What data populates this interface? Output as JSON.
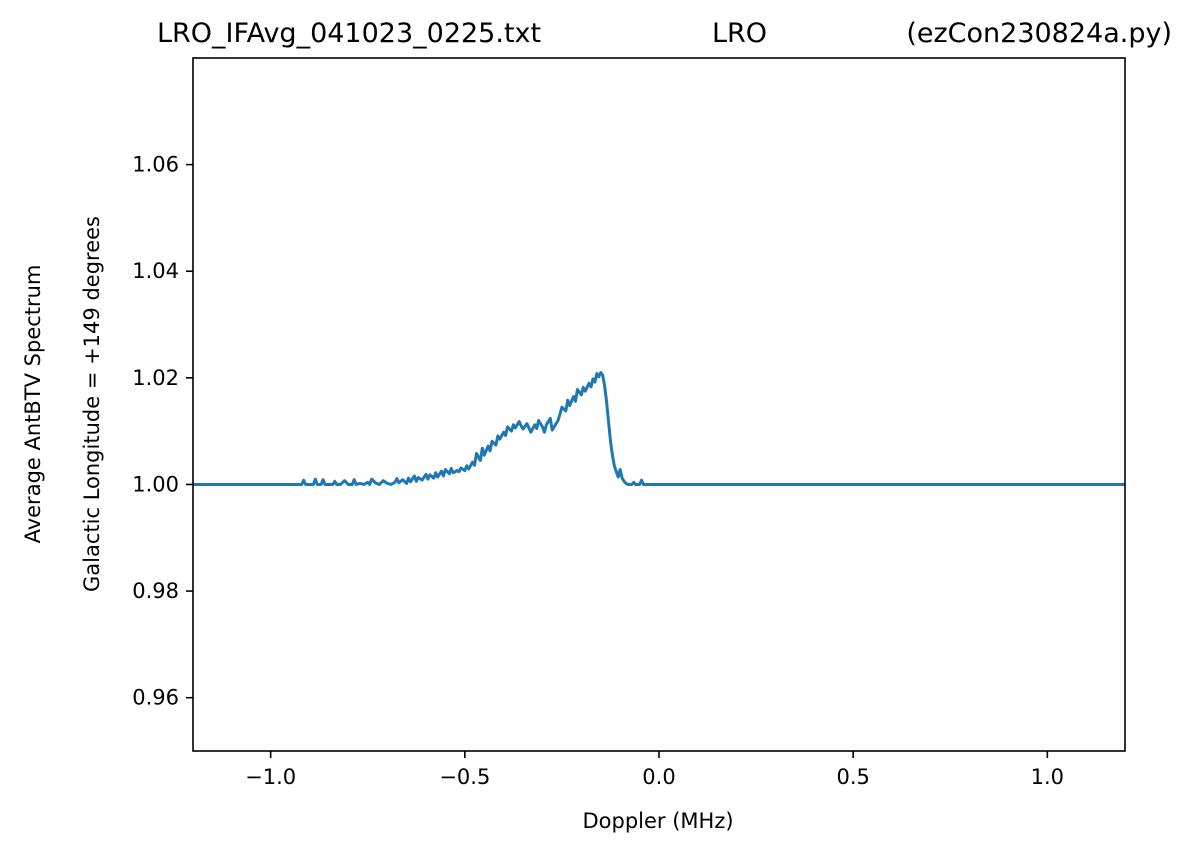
{
  "chart_data": {
    "type": "line",
    "title_left": "LRO_IFAvg_041023_0225.txt",
    "title_center": "LRO",
    "title_right": "(ezCon230824a.py)",
    "xlabel": "Doppler (MHz)",
    "ylabel_line1": "Average AntBTV Spectrum",
    "ylabel_line2": "Galactic Longitude = +149 degrees",
    "xlim": [
      -1.2,
      1.2
    ],
    "ylim": [
      0.95,
      1.08
    ],
    "grid": false,
    "xticks": [
      {
        "value": -1.0,
        "label": "−1.0"
      },
      {
        "value": -0.5,
        "label": "−0.5"
      },
      {
        "value": 0.0,
        "label": "0.0"
      },
      {
        "value": 0.5,
        "label": "0.5"
      },
      {
        "value": 1.0,
        "label": "1.0"
      }
    ],
    "yticks": [
      {
        "value": 0.96,
        "label": "0.96"
      },
      {
        "value": 0.98,
        "label": "0.98"
      },
      {
        "value": 1.0,
        "label": "1.00"
      },
      {
        "value": 1.02,
        "label": "1.02"
      },
      {
        "value": 1.04,
        "label": "1.04"
      },
      {
        "value": 1.06,
        "label": "1.06"
      }
    ],
    "series": [
      {
        "color": "#1f77b4",
        "x": [
          -1.2,
          -0.92,
          -0.915,
          -0.91,
          -0.89,
          -0.885,
          -0.88,
          -0.87,
          -0.865,
          -0.86,
          -0.84,
          -0.835,
          -0.83,
          -0.82,
          -0.81,
          -0.8,
          -0.79,
          -0.785,
          -0.78,
          -0.77,
          -0.76,
          -0.75,
          -0.745,
          -0.74,
          -0.73,
          -0.72,
          -0.71,
          -0.7,
          -0.69,
          -0.68,
          -0.675,
          -0.67,
          -0.66,
          -0.65,
          -0.645,
          -0.64,
          -0.63,
          -0.625,
          -0.62,
          -0.61,
          -0.6,
          -0.595,
          -0.59,
          -0.58,
          -0.575,
          -0.57,
          -0.56,
          -0.555,
          -0.55,
          -0.54,
          -0.535,
          -0.53,
          -0.52,
          -0.515,
          -0.51,
          -0.5,
          -0.495,
          -0.49,
          -0.48,
          -0.475,
          -0.47,
          -0.46,
          -0.455,
          -0.45,
          -0.44,
          -0.435,
          -0.43,
          -0.42,
          -0.415,
          -0.41,
          -0.4,
          -0.395,
          -0.39,
          -0.38,
          -0.375,
          -0.37,
          -0.36,
          -0.355,
          -0.35,
          -0.34,
          -0.335,
          -0.33,
          -0.32,
          -0.315,
          -0.31,
          -0.3,
          -0.295,
          -0.29,
          -0.28,
          -0.275,
          -0.27,
          -0.26,
          -0.255,
          -0.25,
          -0.24,
          -0.235,
          -0.23,
          -0.22,
          -0.215,
          -0.21,
          -0.2,
          -0.195,
          -0.19,
          -0.18,
          -0.175,
          -0.17,
          -0.165,
          -0.16,
          -0.155,
          -0.15,
          -0.145,
          -0.14,
          -0.135,
          -0.13,
          -0.125,
          -0.12,
          -0.115,
          -0.11,
          -0.105,
          -0.1,
          -0.095,
          -0.09,
          -0.085,
          -0.08,
          -0.075,
          -0.07,
          -0.065,
          -0.06,
          -0.055,
          -0.05,
          -0.045,
          -0.04,
          -0.035,
          1.2
        ],
        "y": [
          1.0,
          1.0,
          1.0008,
          1.0,
          1.0,
          1.001,
          1.0,
          1.0,
          1.0009,
          1.0,
          1.0,
          1.0006,
          1.0,
          1.0,
          1.0007,
          1.0,
          1.0,
          1.0009,
          1.0,
          1.0002,
          1.0,
          1.0004,
          1.0,
          1.001,
          1.0003,
          1.0,
          1.0007,
          1.0002,
          1.0,
          1.0004,
          1.0011,
          1.0003,
          1.0009,
          1.0002,
          1.0012,
          1.0005,
          1.0016,
          1.0006,
          1.0013,
          1.0008,
          1.0019,
          1.001,
          1.0018,
          1.0012,
          1.0022,
          1.0014,
          1.0025,
          1.0016,
          1.0028,
          1.002,
          1.003,
          1.0022,
          1.0026,
          1.0024,
          1.0031,
          1.0026,
          1.0035,
          1.0029,
          1.0042,
          1.0036,
          1.0058,
          1.0045,
          1.0068,
          1.0055,
          1.0072,
          1.0063,
          1.0081,
          1.0074,
          1.0091,
          1.0085,
          1.0098,
          1.0092,
          1.0108,
          1.01,
          1.0112,
          1.0106,
          1.0118,
          1.011,
          1.0104,
          1.0114,
          1.0106,
          1.0098,
          1.0112,
          1.0105,
          1.012,
          1.0108,
          1.0098,
          1.0112,
          1.0124,
          1.0102,
          1.0108,
          1.012,
          1.0132,
          1.0145,
          1.0138,
          1.0158,
          1.0148,
          1.0165,
          1.0156,
          1.0178,
          1.0168,
          1.0182,
          1.0175,
          1.019,
          1.0183,
          1.0198,
          1.0192,
          1.0208,
          1.0202,
          1.021,
          1.0205,
          1.0185,
          1.0155,
          1.0118,
          1.0082,
          1.0055,
          1.0035,
          1.0024,
          1.0014,
          1.0028,
          1.0012,
          1.0006,
          1.0002,
          1.0,
          1.0,
          1.0,
          1.0004,
          1.0,
          1.0,
          1.0,
          1.0008,
          1.0,
          1.0,
          1.0
        ]
      }
    ]
  }
}
